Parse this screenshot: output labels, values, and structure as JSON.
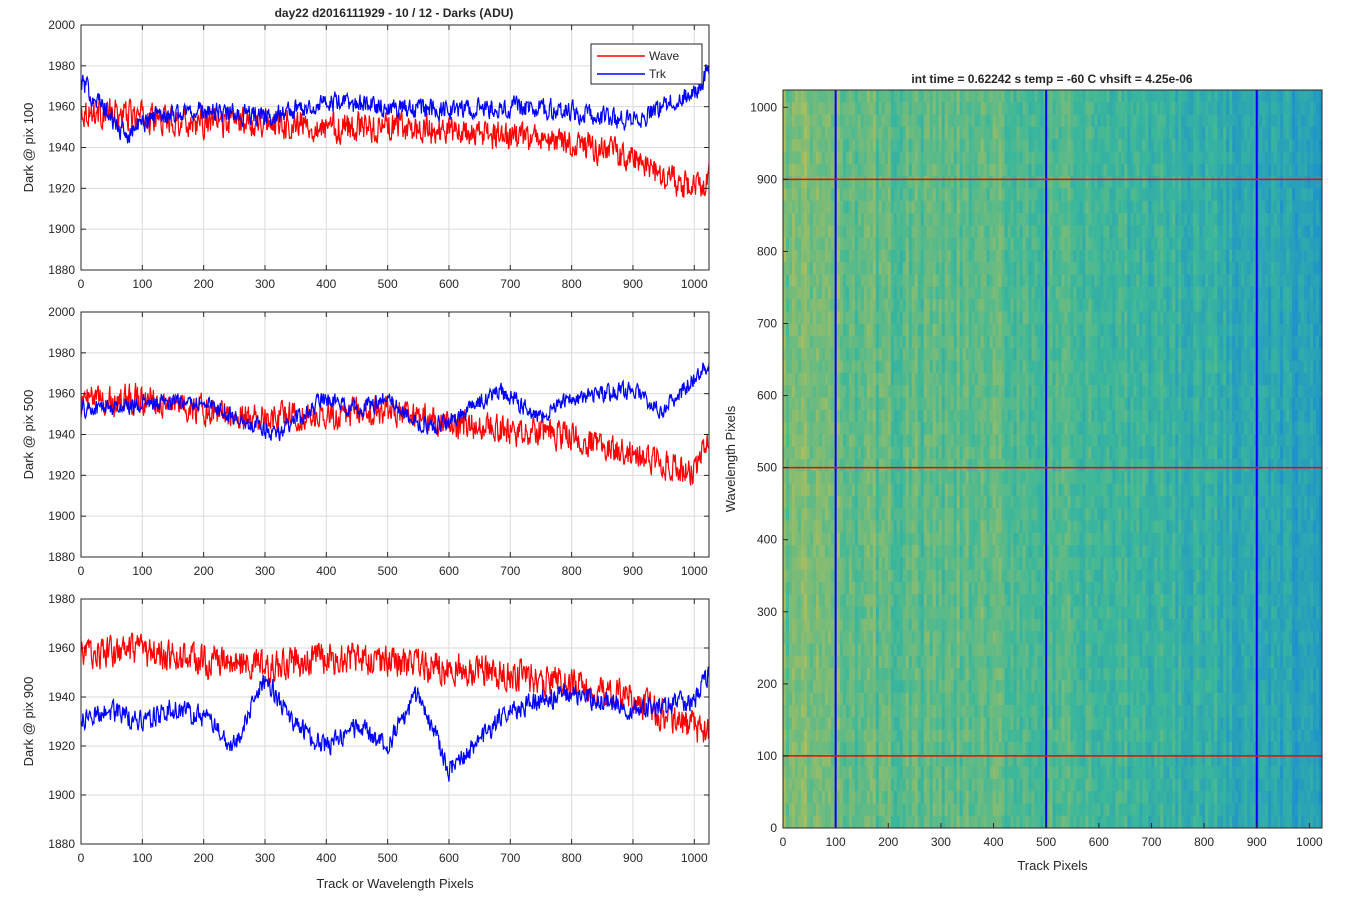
{
  "figure": {
    "left_title": "day22 d2016111929 - 10 / 12 - Darks (ADU)",
    "right_title": "int time = 0.62242 s    temp = -60 C    vhsift = 4.25e-06"
  },
  "colors": {
    "wave": "#ff0000",
    "trk": "#0000ff",
    "grid": "#dadada",
    "axes": "#262626",
    "heatmap_low": "#1a8fd0",
    "heatmap_mid": "#3bb89a",
    "heatmap_high": "#b8bf57"
  },
  "chart_data": [
    {
      "type": "line",
      "xlim": [
        0,
        1024
      ],
      "ylim": [
        1880,
        2000
      ],
      "xticks": [
        0,
        100,
        200,
        300,
        400,
        500,
        600,
        700,
        800,
        900,
        1000
      ],
      "yticks": [
        1880,
        1900,
        1920,
        1940,
        1960,
        1980,
        2000
      ],
      "xlabel": "",
      "ylabel": "Dark @ pix 100",
      "grid": true,
      "legend": {
        "position": "top-right",
        "entries": [
          "Wave",
          "Trk"
        ]
      },
      "series": [
        {
          "name": "Wave",
          "color": "#ff0000",
          "x": [
            0,
            100,
            200,
            300,
            400,
            500,
            600,
            700,
            800,
            900,
            950,
            1000,
            1024
          ],
          "y": [
            1958,
            1955,
            1952,
            1953,
            1950,
            1950,
            1948,
            1945,
            1942,
            1935,
            1925,
            1920,
            1925
          ],
          "noise_amplitude": 10
        },
        {
          "name": "Trk",
          "color": "#0000ff",
          "x": [
            0,
            30,
            70,
            120,
            200,
            300,
            400,
            500,
            600,
            700,
            800,
            900,
            960,
            1000,
            1024
          ],
          "y": [
            1972,
            1962,
            1946,
            1956,
            1958,
            1955,
            1962,
            1960,
            1958,
            1960,
            1958,
            1952,
            1962,
            1966,
            1978
          ],
          "noise_amplitude": 7
        }
      ]
    },
    {
      "type": "line",
      "xlim": [
        0,
        1024
      ],
      "ylim": [
        1880,
        2000
      ],
      "xticks": [
        0,
        100,
        200,
        300,
        400,
        500,
        600,
        700,
        800,
        900,
        1000
      ],
      "yticks": [
        1880,
        1900,
        1920,
        1940,
        1960,
        1980,
        2000
      ],
      "xlabel": "",
      "ylabel": "Dark @ pix 500",
      "grid": true,
      "series": [
        {
          "name": "Wave",
          "color": "#ff0000",
          "x": [
            0,
            100,
            200,
            300,
            400,
            500,
            600,
            700,
            800,
            900,
            1000,
            1024
          ],
          "y": [
            1956,
            1958,
            1952,
            1948,
            1950,
            1952,
            1945,
            1942,
            1940,
            1930,
            1922,
            1935
          ],
          "noise_amplitude": 10
        },
        {
          "name": "Trk",
          "color": "#0000ff",
          "x": [
            0,
            100,
            200,
            280,
            320,
            400,
            450,
            500,
            550,
            600,
            680,
            750,
            800,
            900,
            950,
            1000,
            1024
          ],
          "y": [
            1952,
            1955,
            1956,
            1945,
            1940,
            1958,
            1952,
            1958,
            1945,
            1945,
            1962,
            1948,
            1958,
            1962,
            1952,
            1968,
            1975
          ],
          "noise_amplitude": 6
        }
      ]
    },
    {
      "type": "line",
      "xlim": [
        0,
        1024
      ],
      "ylim": [
        1880,
        1980
      ],
      "xticks": [
        0,
        100,
        200,
        300,
        400,
        500,
        600,
        700,
        800,
        900,
        1000
      ],
      "yticks": [
        1880,
        1900,
        1920,
        1940,
        1960,
        1980
      ],
      "xlabel": "Track or Wavelength Pixels",
      "ylabel": "Dark @ pix 900",
      "grid": true,
      "series": [
        {
          "name": "Wave",
          "color": "#ff0000",
          "x": [
            0,
            100,
            200,
            300,
            400,
            500,
            600,
            700,
            800,
            900,
            950,
            1000,
            1024
          ],
          "y": [
            1958,
            1958,
            1955,
            1952,
            1956,
            1955,
            1952,
            1950,
            1945,
            1940,
            1932,
            1928,
            1925
          ],
          "noise_amplitude": 9
        },
        {
          "name": "Trk",
          "color": "#0000ff",
          "x": [
            0,
            40,
            100,
            150,
            200,
            250,
            300,
            350,
            400,
            450,
            500,
            550,
            600,
            650,
            700,
            800,
            900,
            1000,
            1024
          ],
          "y": [
            1930,
            1935,
            1930,
            1935,
            1932,
            1920,
            1948,
            1928,
            1920,
            1928,
            1920,
            1942,
            1910,
            1922,
            1935,
            1942,
            1935,
            1938,
            1950
          ],
          "noise_amplitude": 6
        }
      ]
    },
    {
      "type": "heatmap",
      "title": "int time = 0.62242 s    temp = -60 C    vhsift = 4.25e-06",
      "xlabel": "Track Pixels",
      "ylabel": "Wavelength Pixels",
      "xlim": [
        0,
        1024
      ],
      "ylim": [
        0,
        1024
      ],
      "xticks": [
        0,
        100,
        200,
        300,
        400,
        500,
        600,
        700,
        800,
        900,
        1000
      ],
      "yticks": [
        0,
        100,
        200,
        300,
        400,
        500,
        600,
        700,
        800,
        900,
        1000
      ],
      "colormap": "parula",
      "column_profile": {
        "x": [
          0,
          100,
          200,
          300,
          400,
          500,
          600,
          700,
          800,
          900,
          1000,
          1024
        ],
        "level": [
          0.75,
          0.72,
          0.62,
          0.6,
          0.62,
          0.55,
          0.48,
          0.45,
          0.4,
          0.28,
          0.2,
          0.18
        ]
      },
      "vertical_lines": {
        "x": [
          100,
          500,
          900
        ],
        "color": "#0000ff"
      },
      "horizontal_lines": {
        "y": [
          100,
          500,
          900
        ],
        "color": "#ff0000"
      }
    }
  ]
}
